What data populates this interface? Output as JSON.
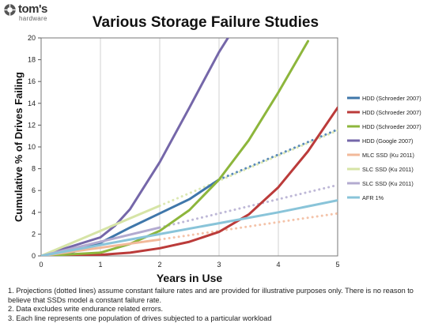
{
  "logo": {
    "name": "tom's",
    "sub": "hardware"
  },
  "chart_data": {
    "type": "line",
    "title": "Various Storage Failure Studies",
    "xlabel": "Years in Use",
    "ylabel": "Cumulative % of Drives Failing",
    "xlim": [
      0,
      5
    ],
    "ylim": [
      0,
      20
    ],
    "xticks": [
      "0",
      "1",
      "2",
      "3",
      "4",
      "5"
    ],
    "yticks": [
      "0",
      "2",
      "4",
      "6",
      "8",
      "10",
      "12",
      "14",
      "16",
      "18",
      "20"
    ],
    "grid": "vertical",
    "legend_position": "right",
    "series": [
      {
        "name": "HDD (Schroeder 2007)",
        "color": "#3f77aa",
        "x": [
          0,
          0.5,
          1,
          1.5,
          2,
          2.5,
          3
        ],
        "y": [
          0,
          0.3,
          1.2,
          2.6,
          3.9,
          5.2,
          7.0
        ],
        "projection_x": [
          3,
          4,
          5
        ],
        "projection_y": [
          7.0,
          9.3,
          11.6
        ]
      },
      {
        "name": "HDD (Schroeder 2007)",
        "color": "#bb3b3a",
        "x": [
          0,
          1,
          1.5,
          2,
          2.5,
          3,
          3.5,
          4,
          4.5,
          5
        ],
        "y": [
          0,
          0.1,
          0.3,
          0.7,
          1.3,
          2.2,
          3.8,
          6.3,
          9.6,
          13.6
        ]
      },
      {
        "name": "HDD (Schroeder 2007)",
        "color": "#8db63c",
        "x": [
          0,
          1,
          1.5,
          2,
          2.5,
          3,
          3.5,
          4,
          4.5
        ],
        "y": [
          0,
          0.3,
          1.1,
          2.3,
          4.2,
          7.0,
          10.6,
          15.0,
          19.7
        ]
      },
      {
        "name": "HDD (Google 2007)",
        "color": "#7567a9",
        "x": [
          0,
          1,
          1.25,
          1.5,
          2,
          2.5,
          3,
          3.15
        ],
        "y": [
          0,
          1.7,
          2.8,
          4.3,
          8.6,
          13.6,
          18.7,
          20
        ]
      },
      {
        "name": "MLC SSD (Ku 2011)",
        "color": "#f2b99a",
        "x": [
          0,
          2
        ],
        "y": [
          0,
          1.5
        ],
        "projection_x": [
          2,
          3,
          4,
          5
        ],
        "projection_y": [
          1.5,
          2.3,
          3.1,
          3.9
        ]
      },
      {
        "name": "SLC SSD (Ku 2011)",
        "color": "#d6e4a6",
        "x": [
          0,
          2
        ],
        "y": [
          0,
          4.6
        ],
        "projection_x": [
          2,
          3,
          4,
          5
        ],
        "projection_y": [
          4.6,
          6.9,
          9.2,
          11.5
        ]
      },
      {
        "name": "SLC SSD (Ku 2011)",
        "color": "#b3abd0",
        "x": [
          0,
          2
        ],
        "y": [
          0,
          2.6
        ],
        "projection_x": [
          2,
          3,
          4,
          5
        ],
        "projection_y": [
          2.6,
          3.9,
          5.2,
          6.5
        ]
      },
      {
        "name": "AFR 1%",
        "color": "#89c4d9",
        "x": [
          0,
          1,
          2,
          3,
          4,
          5
        ],
        "y": [
          0,
          1,
          2,
          3,
          4,
          5.1
        ]
      }
    ]
  },
  "notes": [
    "1. Projections (dotted lines) assume constant failure rates and are provided for illustrative purposes only. There is no reason to believe that SSDs model a constant failure rate.",
    "2. Data excludes write endurance related errors.",
    "3. Each line represents one population of drives subjected to a particular workload"
  ]
}
